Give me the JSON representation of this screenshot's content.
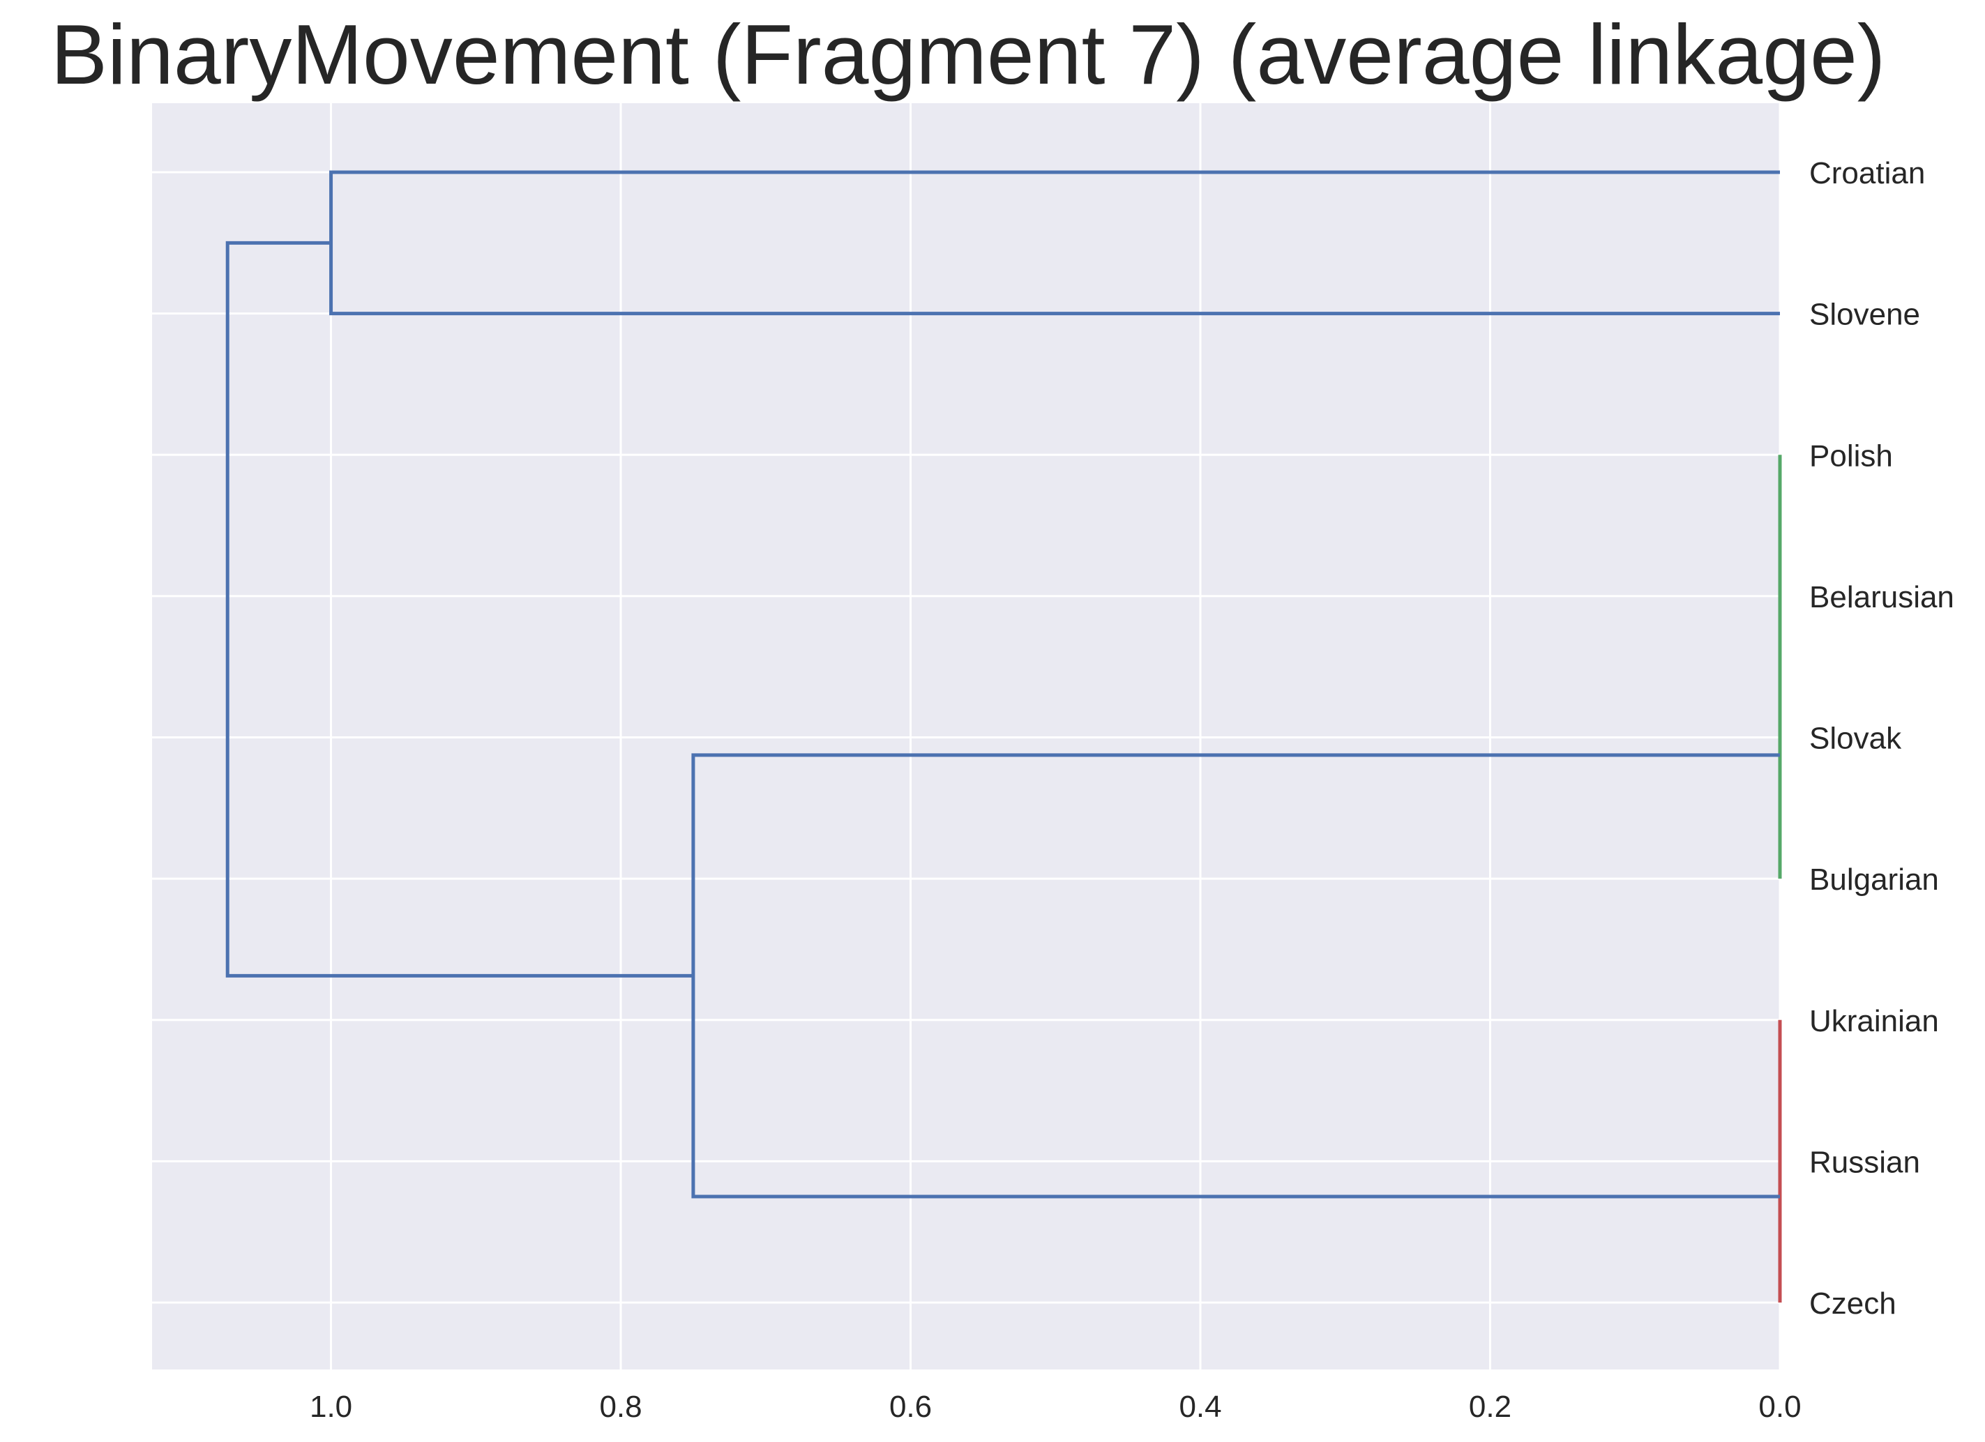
{
  "chart_data": {
    "type": "dendrogram",
    "orientation": "left",
    "title": "BinaryMovement (Fragment 7) (average linkage)",
    "xlabel": "",
    "ylabel": "",
    "xlim": [
      1.1235,
      0.0
    ],
    "x_ticks": [
      1.0,
      0.8,
      0.6,
      0.4,
      0.2,
      0.0
    ],
    "x_tick_labels": [
      "1.0",
      "0.8",
      "0.6",
      "0.4",
      "0.2",
      "0.0"
    ],
    "grid": true,
    "leaves": [
      "Croatian",
      "Slovene",
      "Polish",
      "Belarusian",
      "Slovak",
      "Bulgarian",
      "Ukrainian",
      "Russian",
      "Czech"
    ],
    "merges": [
      {
        "left": "Polish",
        "right": "Belarusian",
        "height": 0.0,
        "color": "green"
      },
      {
        "left": "Polish+Belarusian",
        "right": "Slovak",
        "height": 0.0,
        "color": "green"
      },
      {
        "left": "Polish+Belarusian+Slovak",
        "right": "Bulgarian",
        "height": 0.0,
        "color": "green"
      },
      {
        "left": "Ukrainian",
        "right": "Russian",
        "height": 0.0,
        "color": "red"
      },
      {
        "left": "Ukrainian+Russian",
        "right": "Czech",
        "height": 0.0,
        "color": "red"
      },
      {
        "left": "Croatian",
        "right": "Slovene",
        "height": 1.0,
        "color": "blue"
      },
      {
        "left": "Polish+Belarusian+Slovak+Bulgarian",
        "right": "Ukrainian+Russian+Czech",
        "height": 0.75,
        "color": "blue"
      },
      {
        "left": "Croatian+Slovene",
        "right": "Polish+Belarusian+Slovak+Bulgarian+Ukrainian+Russian+Czech",
        "height": 1.0714,
        "color": "blue"
      }
    ],
    "colors": {
      "background": "#eaeaf2",
      "grid": "#ffffff",
      "link_above_threshold": "#4c72b0",
      "cluster_green": "#55a868",
      "cluster_red": "#c44e52",
      "text": "#262626"
    }
  }
}
